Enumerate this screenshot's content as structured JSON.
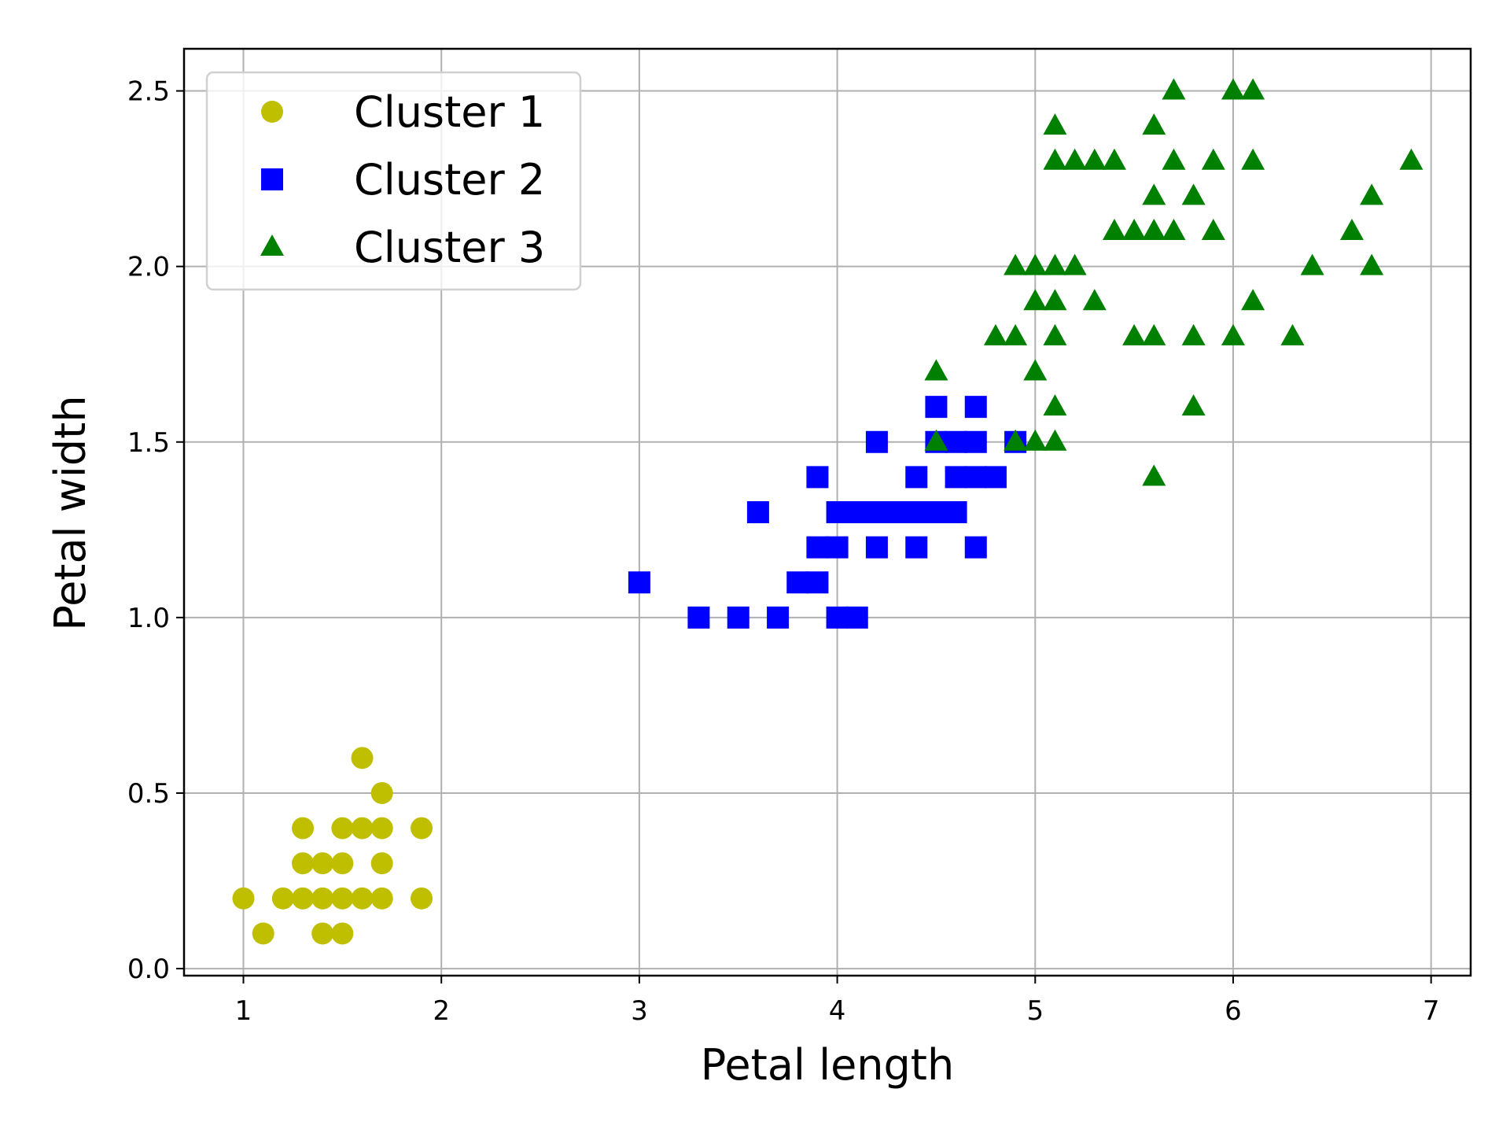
{
  "chart_data": {
    "type": "scatter",
    "title": "",
    "xlabel": "Petal length",
    "ylabel": "Petal width",
    "xlim": [
      0.7,
      7.2
    ],
    "ylim": [
      -0.02,
      2.62
    ],
    "xticks": [
      1,
      2,
      3,
      4,
      5,
      6,
      7
    ],
    "xtick_labels": [
      "1",
      "2",
      "3",
      "4",
      "5",
      "6",
      "7"
    ],
    "yticks": [
      0.0,
      0.5,
      1.0,
      1.5,
      2.0,
      2.5
    ],
    "ytick_labels": [
      "0.0",
      "0.5",
      "1.0",
      "1.5",
      "2.0",
      "2.5"
    ],
    "grid": true,
    "legend_position": "top-left",
    "series": [
      {
        "name": "Cluster 1",
        "marker": "circle",
        "color": "#bfbf00",
        "points": [
          [
            1.0,
            0.2
          ],
          [
            1.1,
            0.1
          ],
          [
            1.2,
            0.2
          ],
          [
            1.3,
            0.2
          ],
          [
            1.4,
            0.2
          ],
          [
            1.5,
            0.2
          ],
          [
            1.6,
            0.2
          ],
          [
            1.7,
            0.2
          ],
          [
            1.9,
            0.2
          ],
          [
            1.4,
            0.1
          ],
          [
            1.5,
            0.1
          ],
          [
            1.3,
            0.3
          ],
          [
            1.4,
            0.3
          ],
          [
            1.5,
            0.3
          ],
          [
            1.7,
            0.3
          ],
          [
            1.3,
            0.4
          ],
          [
            1.5,
            0.4
          ],
          [
            1.6,
            0.4
          ],
          [
            1.7,
            0.4
          ],
          [
            1.9,
            0.4
          ],
          [
            1.7,
            0.5
          ],
          [
            1.6,
            0.6
          ]
        ]
      },
      {
        "name": "Cluster 2",
        "marker": "square",
        "color": "#0000ff",
        "points": [
          [
            3.0,
            1.1
          ],
          [
            3.3,
            1.0
          ],
          [
            3.5,
            1.0
          ],
          [
            3.7,
            1.0
          ],
          [
            4.0,
            1.0
          ],
          [
            4.1,
            1.0
          ],
          [
            3.8,
            1.1
          ],
          [
            3.9,
            1.1
          ],
          [
            3.9,
            1.2
          ],
          [
            4.0,
            1.2
          ],
          [
            4.2,
            1.2
          ],
          [
            4.4,
            1.2
          ],
          [
            4.7,
            1.2
          ],
          [
            3.6,
            1.3
          ],
          [
            4.0,
            1.3
          ],
          [
            4.1,
            1.3
          ],
          [
            4.2,
            1.3
          ],
          [
            4.3,
            1.3
          ],
          [
            4.4,
            1.3
          ],
          [
            4.5,
            1.3
          ],
          [
            4.6,
            1.3
          ],
          [
            3.9,
            1.4
          ],
          [
            4.4,
            1.4
          ],
          [
            4.6,
            1.4
          ],
          [
            4.7,
            1.4
          ],
          [
            4.8,
            1.4
          ],
          [
            4.2,
            1.5
          ],
          [
            4.5,
            1.5
          ],
          [
            4.6,
            1.5
          ],
          [
            4.7,
            1.5
          ],
          [
            4.9,
            1.5
          ],
          [
            4.5,
            1.6
          ],
          [
            4.7,
            1.6
          ]
        ]
      },
      {
        "name": "Cluster 3",
        "marker": "triangle",
        "color": "#008000",
        "points": [
          [
            4.5,
            1.5
          ],
          [
            4.9,
            1.5
          ],
          [
            5.0,
            1.5
          ],
          [
            5.1,
            1.5
          ],
          [
            5.6,
            1.4
          ],
          [
            5.1,
            1.6
          ],
          [
            5.8,
            1.6
          ],
          [
            4.5,
            1.7
          ],
          [
            5.0,
            1.7
          ],
          [
            4.8,
            1.8
          ],
          [
            4.9,
            1.8
          ],
          [
            5.1,
            1.8
          ],
          [
            5.5,
            1.8
          ],
          [
            5.6,
            1.8
          ],
          [
            5.8,
            1.8
          ],
          [
            6.0,
            1.8
          ],
          [
            6.3,
            1.8
          ],
          [
            5.0,
            1.9
          ],
          [
            5.1,
            1.9
          ],
          [
            5.3,
            1.9
          ],
          [
            6.1,
            1.9
          ],
          [
            4.9,
            2.0
          ],
          [
            5.0,
            2.0
          ],
          [
            5.1,
            2.0
          ],
          [
            5.2,
            2.0
          ],
          [
            6.4,
            2.0
          ],
          [
            6.7,
            2.0
          ],
          [
            5.4,
            2.1
          ],
          [
            5.5,
            2.1
          ],
          [
            5.6,
            2.1
          ],
          [
            5.7,
            2.1
          ],
          [
            5.9,
            2.1
          ],
          [
            6.6,
            2.1
          ],
          [
            5.6,
            2.2
          ],
          [
            5.8,
            2.2
          ],
          [
            6.7,
            2.2
          ],
          [
            5.1,
            2.3
          ],
          [
            5.2,
            2.3
          ],
          [
            5.3,
            2.3
          ],
          [
            5.4,
            2.3
          ],
          [
            5.7,
            2.3
          ],
          [
            5.9,
            2.3
          ],
          [
            6.1,
            2.3
          ],
          [
            6.9,
            2.3
          ],
          [
            5.1,
            2.4
          ],
          [
            5.6,
            2.4
          ],
          [
            5.7,
            2.5
          ],
          [
            6.0,
            2.5
          ],
          [
            6.1,
            2.5
          ]
        ]
      }
    ]
  }
}
